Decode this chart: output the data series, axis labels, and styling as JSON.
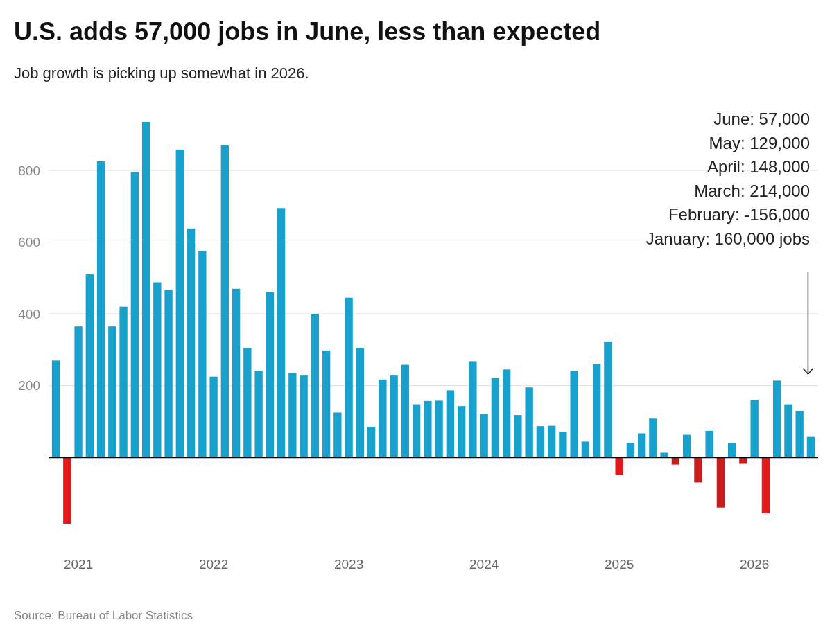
{
  "chart_data": {
    "type": "bar",
    "title": "U.S. adds 57,000 jobs in June, less than expected",
    "subtitle": "Job growth is picking up somewhat in 2026.",
    "categories": [
      null,
      null,
      "2021",
      null,
      null,
      null,
      null,
      null,
      null,
      null,
      null,
      null,
      null,
      null,
      "2022",
      null,
      null,
      null,
      null,
      null,
      null,
      null,
      null,
      null,
      null,
      null,
      "2023",
      null,
      null,
      null,
      null,
      null,
      null,
      null,
      null,
      null,
      null,
      null,
      "2024",
      null,
      null,
      null,
      null,
      null,
      null,
      null,
      null,
      null,
      null,
      null,
      "2025",
      null,
      null,
      null,
      null,
      null,
      null,
      null,
      null,
      null,
      null,
      null,
      "2026",
      null,
      null,
      null,
      null,
      null
    ],
    "values": [
      270,
      -185,
      365,
      510,
      825,
      365,
      420,
      795,
      935,
      488,
      467,
      858,
      638,
      575,
      225,
      870,
      470,
      305,
      240,
      460,
      695,
      235,
      228,
      400,
      298,
      125,
      445,
      305,
      85,
      217,
      228,
      258,
      148,
      157,
      158,
      187,
      143,
      268,
      120,
      222,
      245,
      118,
      195,
      87,
      88,
      72,
      240,
      44,
      261,
      323,
      -48,
      40,
      67,
      108,
      13,
      -20,
      63,
      -70,
      74,
      -140,
      40,
      -18,
      160,
      -156,
      214,
      148,
      129,
      57
    ],
    "colors": [
      "#18a1cd",
      "#e31a1c",
      "#18a1cd",
      "#18a1cd",
      "#18a1cd",
      "#18a1cd",
      "#18a1cd",
      "#18a1cd",
      "#18a1cd",
      "#18a1cd",
      "#18a1cd",
      "#18a1cd",
      "#18a1cd",
      "#18a1cd",
      "#18a1cd",
      "#18a1cd",
      "#18a1cd",
      "#18a1cd",
      "#18a1cd",
      "#18a1cd",
      "#18a1cd",
      "#18a1cd",
      "#18a1cd",
      "#18a1cd",
      "#18a1cd",
      "#18a1cd",
      "#18a1cd",
      "#18a1cd",
      "#18a1cd",
      "#18a1cd",
      "#18a1cd",
      "#18a1cd",
      "#18a1cd",
      "#18a1cd",
      "#18a1cd",
      "#18a1cd",
      "#18a1cd",
      "#18a1cd",
      "#18a1cd",
      "#18a1cd",
      "#18a1cd",
      "#18a1cd",
      "#18a1cd",
      "#18a1cd",
      "#18a1cd",
      "#18a1cd",
      "#18a1cd",
      "#18a1cd",
      "#18a1cd",
      "#18a1cd",
      "#e31a1c",
      "#18a1cd",
      "#18a1cd",
      "#18a1cd",
      "#18a1cd",
      "#c71e1d",
      "#18a1cd",
      "#c71e1d",
      "#18a1cd",
      "#c71e1d",
      "#18a1cd",
      "#c71e1d",
      "#18a1cd",
      "#e31a1c",
      "#18a1cd",
      "#18a1cd",
      "#18a1cd",
      "#18a1cd"
    ],
    "ylim": [
      -185,
      935
    ],
    "yticks": [
      {
        "value": 0,
        "label": null
      },
      200,
      400,
      600,
      800
    ],
    "grid": "y",
    "annotations": [
      "June: 57,000\nMay: 129,000\nApril: 148,000\nMarch: 214,000\nFebruary: -156,000\nJanuary: 160,000 jobs",
      "Source: Bureau of Labor Statistics"
    ]
  }
}
